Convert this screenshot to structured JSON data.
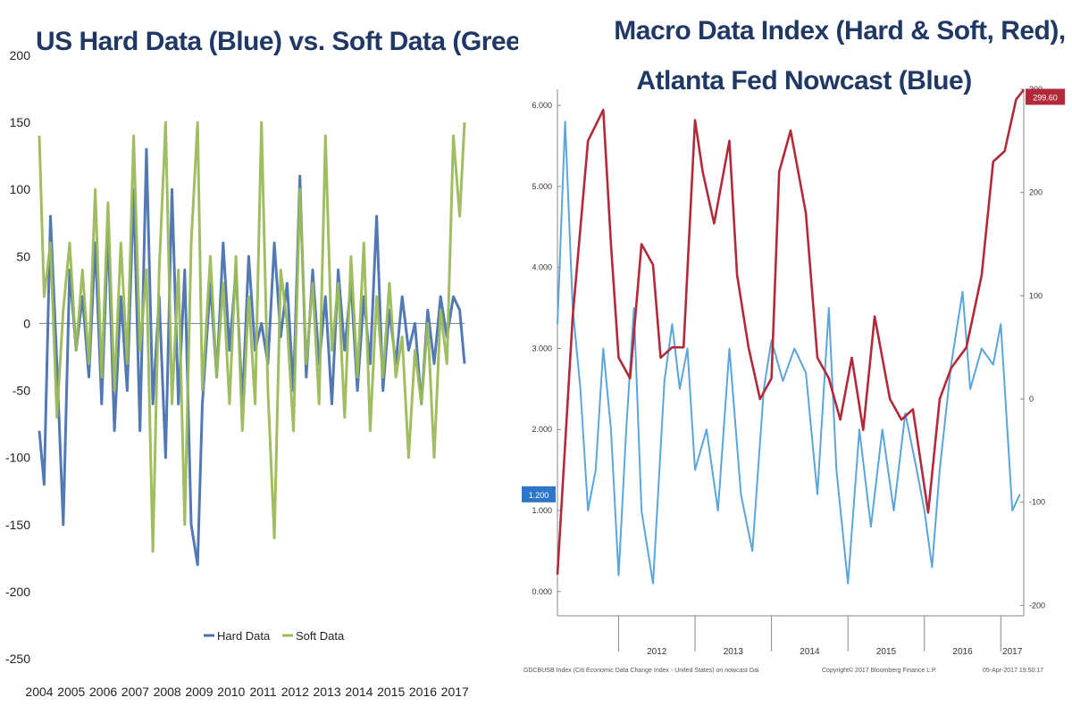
{
  "left": {
    "title": "US Hard Data (Blue) vs. Soft Data (Green)",
    "legend": [
      "Hard Data",
      "Soft Data"
    ],
    "colors": {
      "hard": "#4a72b0",
      "soft": "#9bbb59",
      "zero": "#7f8fa6"
    }
  },
  "right": {
    "title_line1": "Macro Data Index (Hard & Soft, Red),",
    "title_line2": "Atlanta Fed Nowcast (Blue)",
    "badge_left": "1.200",
    "badge_right": "299.60",
    "footer_left": "GDCBUSB Index (Citi Economic Data Change Index - United States) on nowcast  Dai",
    "footer_center": "Copyright© 2017 Bloomberg Finance L.P.",
    "footer_right": "05-Apr-2017 19:50:17",
    "colors": {
      "red": "#b22a3a",
      "blue": "#5aa5dc",
      "badge_left": "#2e77c8",
      "badge_right": "#b22a3a"
    }
  },
  "chart_data": [
    {
      "type": "line",
      "title": "US Hard Data (Blue) vs. Soft Data (Green)",
      "x_ticks": [
        "2004",
        "2005",
        "2006",
        "2007",
        "2008",
        "2009",
        "2010",
        "2011",
        "2012",
        "2013",
        "2014",
        "2015",
        "2016",
        "2017"
      ],
      "y_ticks": [
        200,
        150,
        100,
        50,
        0,
        -50,
        -100,
        -150,
        -200,
        -250
      ],
      "ylim": [
        -250,
        200
      ],
      "xlim": [
        2004,
        2017.3
      ],
      "grid": false,
      "legend_position": "bottom-center",
      "series": [
        {
          "name": "Hard Data",
          "x": [
            2004,
            2004.15,
            2004.35,
            2004.55,
            2004.75,
            2004.95,
            2005.15,
            2005.35,
            2005.55,
            2005.75,
            2005.95,
            2006.15,
            2006.35,
            2006.55,
            2006.75,
            2006.95,
            2007.15,
            2007.35,
            2007.55,
            2007.75,
            2007.95,
            2008.15,
            2008.35,
            2008.55,
            2008.75,
            2008.95,
            2009.1,
            2009.35,
            2009.55,
            2009.75,
            2009.95,
            2010.15,
            2010.35,
            2010.55,
            2010.75,
            2010.95,
            2011.15,
            2011.35,
            2011.55,
            2011.75,
            2011.95,
            2012.15,
            2012.35,
            2012.55,
            2012.75,
            2012.95,
            2013.15,
            2013.35,
            2013.55,
            2013.75,
            2013.95,
            2014.15,
            2014.35,
            2014.55,
            2014.75,
            2014.95,
            2015.15,
            2015.35,
            2015.55,
            2015.75,
            2015.95,
            2016.15,
            2016.35,
            2016.55,
            2016.75,
            2016.95,
            2017.15,
            2017.3
          ],
          "values": [
            -80,
            -120,
            80,
            -30,
            -150,
            40,
            -20,
            20,
            -40,
            60,
            -60,
            70,
            -80,
            20,
            -50,
            100,
            -80,
            130,
            -60,
            20,
            -100,
            100,
            -60,
            40,
            -150,
            -180,
            -60,
            30,
            -40,
            60,
            -20,
            40,
            -60,
            50,
            -20,
            0,
            -30,
            60,
            -10,
            30,
            -50,
            110,
            -40,
            40,
            -30,
            20,
            -60,
            40,
            -20,
            30,
            -50,
            20,
            -30,
            80,
            -50,
            10,
            -30,
            20,
            -20,
            0,
            -60,
            10,
            -30,
            20,
            -10,
            20,
            10,
            -30
          ]
        },
        {
          "name": "Soft Data",
          "x": [
            2004,
            2004.15,
            2004.35,
            2004.55,
            2004.75,
            2004.95,
            2005.15,
            2005.35,
            2005.55,
            2005.75,
            2005.95,
            2006.15,
            2006.35,
            2006.55,
            2006.75,
            2006.95,
            2007.15,
            2007.35,
            2007.55,
            2007.75,
            2007.95,
            2008.15,
            2008.35,
            2008.55,
            2008.75,
            2008.95,
            2009.1,
            2009.35,
            2009.55,
            2009.75,
            2009.95,
            2010.15,
            2010.35,
            2010.55,
            2010.75,
            2010.95,
            2011.15,
            2011.35,
            2011.55,
            2011.75,
            2011.95,
            2012.15,
            2012.35,
            2012.55,
            2012.75,
            2012.95,
            2013.15,
            2013.35,
            2013.55,
            2013.75,
            2013.95,
            2014.15,
            2014.35,
            2014.55,
            2014.75,
            2014.95,
            2015.15,
            2015.35,
            2015.55,
            2015.75,
            2015.95,
            2016.15,
            2016.35,
            2016.55,
            2016.75,
            2016.95,
            2017.15,
            2017.3
          ],
          "values": [
            140,
            20,
            60,
            -70,
            10,
            60,
            -20,
            40,
            -30,
            100,
            -40,
            90,
            -50,
            60,
            -30,
            140,
            -20,
            40,
            -170,
            40,
            150,
            -60,
            40,
            -150,
            60,
            150,
            -50,
            50,
            -40,
            30,
            -60,
            50,
            -80,
            20,
            -60,
            150,
            -50,
            -160,
            40,
            0,
            -80,
            100,
            -30,
            30,
            -60,
            140,
            -20,
            30,
            -70,
            50,
            -40,
            60,
            -80,
            20,
            -40,
            30,
            -40,
            -10,
            -100,
            -20,
            -60,
            0,
            -100,
            10,
            -30,
            140,
            80,
            150
          ]
        }
      ]
    },
    {
      "type": "line",
      "title": "Macro Data Index (Hard & Soft, Red), Atlanta Fed Nowcast (Blue)",
      "x_ticks": [
        "2012",
        "2013",
        "2014",
        "2015",
        "2016",
        "2017"
      ],
      "y_ticks_left": [
        "6.000",
        "5.000",
        "4.000",
        "3.000",
        "2.000",
        "1.000",
        "0.000"
      ],
      "y_ticks_right": [
        "300",
        "200",
        "100",
        "0",
        "-100",
        "-200"
      ],
      "ylim_left": [
        -0.3,
        6.2
      ],
      "ylim_right": [
        -210,
        300
      ],
      "xlim": [
        2011.2,
        2017.3
      ],
      "series": [
        {
          "name": "Macro Data Index (Hard & Soft, Red)",
          "axis": "right",
          "x": [
            2011.2,
            2011.4,
            2011.6,
            2011.8,
            2011.9,
            2012,
            2012.15,
            2012.3,
            2012.45,
            2012.55,
            2012.7,
            2012.85,
            2013,
            2013.1,
            2013.25,
            2013.45,
            2013.55,
            2013.7,
            2013.85,
            2014,
            2014.1,
            2014.25,
            2014.45,
            2014.6,
            2014.75,
            2014.9,
            2015.05,
            2015.2,
            2015.35,
            2015.55,
            2015.7,
            2015.85,
            2015.95,
            2016.05,
            2016.2,
            2016.35,
            2016.55,
            2016.75,
            2016.9,
            2017.05,
            2017.2,
            2017.3
          ],
          "values": [
            -170,
            80,
            250,
            280,
            150,
            40,
            20,
            150,
            130,
            40,
            50,
            50,
            270,
            220,
            170,
            250,
            120,
            50,
            0,
            20,
            220,
            260,
            180,
            40,
            20,
            -20,
            40,
            -30,
            80,
            0,
            -20,
            -10,
            -60,
            -110,
            0,
            30,
            50,
            120,
            230,
            240,
            290,
            299.6
          ]
        },
        {
          "name": "Atlanta Fed Nowcast (Blue)",
          "axis": "left",
          "x": [
            2011.2,
            2011.3,
            2011.4,
            2011.5,
            2011.6,
            2011.7,
            2011.8,
            2011.9,
            2012,
            2012.1,
            2012.2,
            2012.3,
            2012.45,
            2012.6,
            2012.7,
            2012.8,
            2012.9,
            2013,
            2013.15,
            2013.3,
            2013.45,
            2013.6,
            2013.75,
            2013.9,
            2014,
            2014.15,
            2014.3,
            2014.45,
            2014.6,
            2014.75,
            2014.85,
            2015,
            2015.15,
            2015.3,
            2015.45,
            2015.6,
            2015.75,
            2015.9,
            2016,
            2016.1,
            2016.2,
            2016.35,
            2016.5,
            2016.6,
            2016.75,
            2016.9,
            2017,
            2017.15,
            2017.25
          ],
          "values": [
            3.3,
            5.8,
            3.5,
            2.5,
            1.0,
            1.5,
            3.0,
            2.0,
            0.2,
            2.0,
            3.5,
            1.0,
            0.1,
            2.6,
            3.3,
            2.5,
            3.0,
            1.5,
            2.0,
            1.0,
            3.0,
            1.2,
            0.5,
            2.5,
            3.1,
            2.6,
            3.0,
            2.7,
            1.2,
            3.5,
            1.5,
            0.1,
            2.0,
            0.8,
            2.0,
            1.0,
            2.2,
            1.5,
            1.0,
            0.3,
            1.5,
            2.8,
            3.7,
            2.5,
            3.0,
            2.8,
            3.3,
            1.0,
            1.2
          ]
        }
      ]
    }
  ]
}
